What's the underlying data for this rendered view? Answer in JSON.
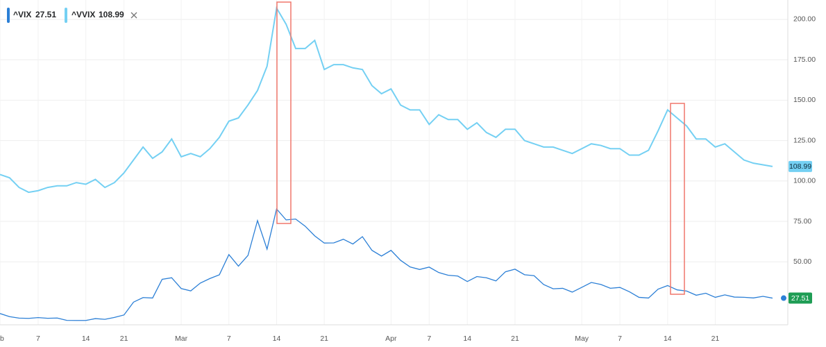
{
  "chart_data": {
    "type": "line",
    "categories": [
      "eb",
      null,
      null,
      null,
      "7",
      null,
      null,
      null,
      null,
      "14",
      null,
      null,
      null,
      "21",
      null,
      null,
      null,
      null,
      null,
      "Mar",
      null,
      null,
      null,
      null,
      "7",
      null,
      null,
      null,
      null,
      "14",
      null,
      null,
      null,
      null,
      "21",
      null,
      null,
      null,
      null,
      null,
      null,
      "Apr",
      null,
      null,
      null,
      "7",
      null,
      null,
      null,
      "14",
      null,
      null,
      null,
      null,
      "21",
      null,
      null,
      null,
      null,
      null,
      null,
      "May",
      null,
      null,
      null,
      "7",
      null,
      null,
      null,
      null,
      "14",
      null,
      null,
      null,
      null,
      "21",
      null,
      null,
      null,
      null,
      null,
      null
    ],
    "series": [
      {
        "name": "^VIX",
        "color": "#2b7fd6",
        "values": [
          17.97,
          16.05,
          15.15,
          14.96,
          15.47,
          15.04,
          15.18,
          13.74,
          13.68,
          13.68,
          14.83,
          14.38,
          15.56,
          17.08,
          25.03,
          27.85,
          27.56,
          39.16,
          40.11,
          33.42,
          31.99,
          36.82,
          39.62,
          41.94,
          54.46,
          47.3,
          53.9,
          75.47,
          57.83,
          82.69,
          75.91,
          76.45,
          72.0,
          66.04,
          61.59,
          61.67,
          63.95,
          61.0,
          65.54,
          57.08,
          53.54,
          57.06,
          50.91,
          46.8,
          45.24,
          46.7,
          43.35,
          41.67,
          41.17,
          37.76,
          40.84,
          40.11,
          38.15,
          43.83,
          45.41,
          41.98,
          41.38,
          35.93,
          33.29,
          33.57,
          31.23,
          34.15,
          37.19,
          35.97,
          33.61,
          34.12,
          31.44,
          27.98,
          27.57,
          33.04,
          35.28,
          32.61,
          31.89,
          29.3,
          30.53,
          27.99,
          29.53,
          28.16,
          28.01,
          27.62,
          28.59,
          27.51
        ]
      },
      {
        "name": "^VVIX",
        "color": "#74d0f3",
        "values": [
          104,
          102,
          96,
          93,
          94,
          96,
          97,
          97,
          99,
          98,
          101,
          96,
          99,
          105,
          113,
          121,
          114,
          118,
          126,
          115,
          117,
          115,
          120,
          127,
          137,
          139,
          147,
          156,
          171,
          207,
          197,
          182,
          182,
          187,
          169,
          172,
          172,
          170,
          169,
          159,
          154,
          157,
          147,
          144,
          144,
          135,
          141,
          138,
          138,
          132,
          136,
          130,
          127,
          132,
          132,
          125,
          123,
          121,
          121,
          119,
          117,
          120,
          123,
          122,
          120,
          120,
          116,
          116,
          119,
          131,
          144,
          139,
          134,
          126,
          126,
          121,
          123,
          118,
          113,
          111,
          110,
          108.99
        ]
      }
    ],
    "ylim": [
      11,
      212
    ],
    "yticks": [
      {
        "value": 50,
        "label": "50.00"
      },
      {
        "value": 75,
        "label": "75.00"
      },
      {
        "value": 100,
        "label": "100.00"
      },
      {
        "value": 125,
        "label": "125.00"
      },
      {
        "value": 150,
        "label": "150.00"
      },
      {
        "value": 175,
        "label": "175.00"
      },
      {
        "value": 200,
        "label": "200.00"
      }
    ],
    "grid": true
  }
}
